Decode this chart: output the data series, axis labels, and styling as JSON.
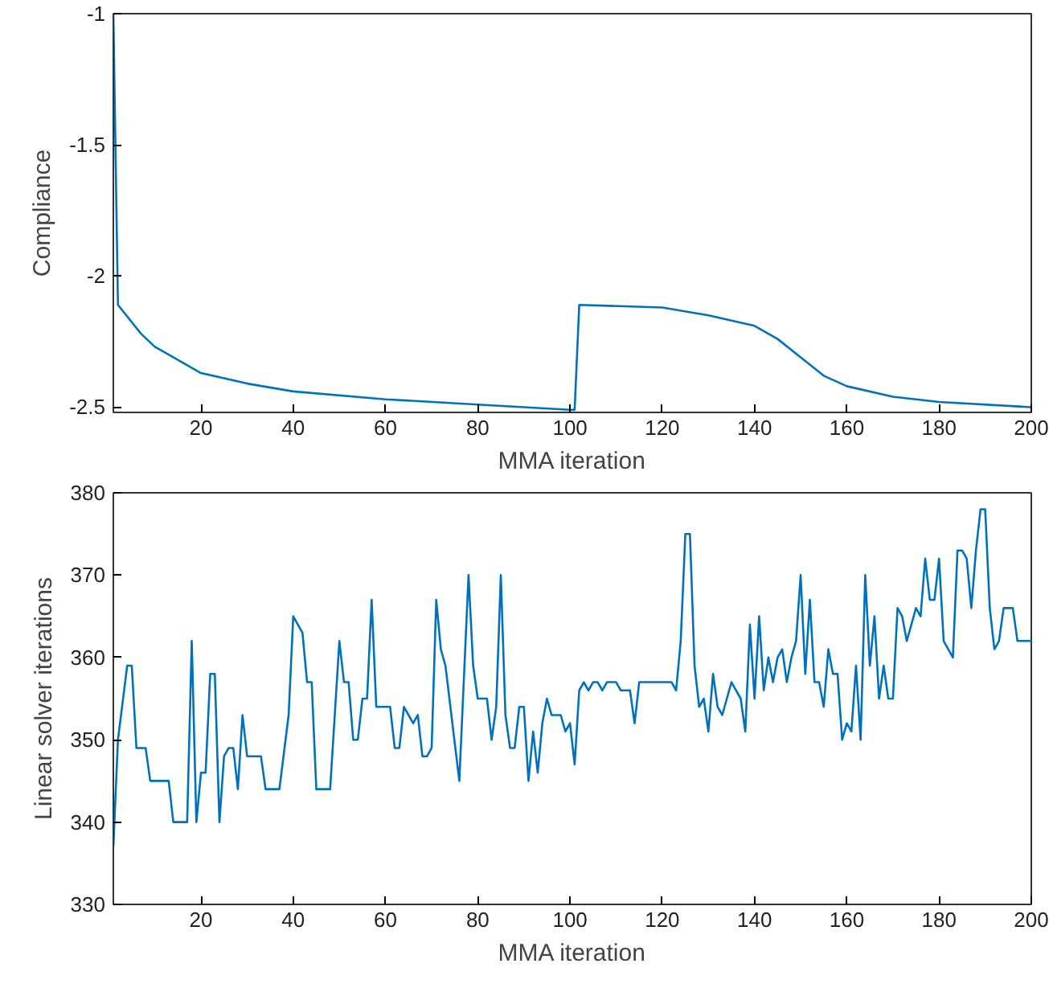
{
  "chart_data": [
    {
      "type": "line",
      "xlabel": "MMA iteration",
      "ylabel": "Compliance",
      "xlim": [
        1,
        200
      ],
      "ylim": [
        -2.52,
        -1
      ],
      "xticks": [
        20,
        40,
        60,
        80,
        100,
        120,
        140,
        160,
        180,
        200
      ],
      "yticks": [
        -2.5,
        -2,
        -1.5,
        -1
      ],
      "series": [
        {
          "color": "#0072bd",
          "x": [
            1,
            2,
            7,
            10,
            14,
            20,
            30,
            40,
            60,
            80,
            100,
            101,
            102,
            120,
            130,
            140,
            145,
            150,
            155,
            160,
            170,
            180,
            200
          ],
          "values": [
            -1,
            -2.11,
            -2.22,
            -2.27,
            -2.31,
            -2.37,
            -2.41,
            -2.44,
            -2.47,
            -2.49,
            -2.51,
            -2.51,
            -2.11,
            -2.12,
            -2.15,
            -2.19,
            -2.24,
            -2.31,
            -2.38,
            -2.42,
            -2.46,
            -2.48,
            -2.5
          ]
        }
      ]
    },
    {
      "type": "line",
      "xlabel": "MMA iteration",
      "ylabel": "Linear solver iterations",
      "xlim": [
        1,
        200
      ],
      "ylim": [
        330,
        380
      ],
      "xticks": [
        20,
        40,
        60,
        80,
        100,
        120,
        140,
        160,
        180,
        200
      ],
      "yticks": [
        330,
        340,
        350,
        360,
        370,
        380
      ],
      "series": [
        {
          "color": "#0072bd",
          "x": [
            1,
            2,
            4,
            5,
            6,
            8,
            9,
            13,
            14,
            17,
            18,
            19,
            20,
            21,
            22,
            23,
            24,
            25,
            26,
            27,
            28,
            29,
            30,
            33,
            34,
            37,
            39,
            40,
            42,
            43,
            44,
            45,
            48,
            50,
            51,
            52,
            53,
            54,
            55,
            56,
            57,
            58,
            61,
            62,
            63,
            64,
            66,
            67,
            68,
            69,
            70,
            71,
            72,
            73,
            76,
            78,
            79,
            80,
            82,
            83,
            84,
            85,
            86,
            87,
            88,
            89,
            90,
            91,
            92,
            93,
            94,
            95,
            96,
            98,
            99,
            100,
            101,
            102,
            103,
            104,
            105,
            106,
            107,
            108,
            110,
            111,
            113,
            114,
            115,
            122,
            123,
            124,
            125,
            126,
            127,
            128,
            129,
            130,
            131,
            132,
            133,
            135,
            137,
            138,
            139,
            140,
            141,
            142,
            143,
            144,
            145,
            146,
            147,
            148,
            149,
            150,
            151,
            152,
            153,
            154,
            155,
            156,
            157,
            158,
            159,
            160,
            161,
            162,
            163,
            164,
            165,
            166,
            167,
            168,
            169,
            170,
            171,
            172,
            173,
            174,
            175,
            176,
            177,
            178,
            179,
            180,
            181,
            183,
            184,
            185,
            186,
            187,
            188,
            189,
            190,
            191,
            192,
            193,
            194,
            196,
            197,
            200
          ],
          "values": [
            337,
            350,
            359,
            359,
            349,
            349,
            345,
            345,
            340,
            340,
            362,
            340,
            346,
            346,
            358,
            358,
            340,
            348,
            349,
            349,
            344,
            353,
            348,
            348,
            344,
            344,
            353,
            365,
            363,
            357,
            357,
            344,
            344,
            362,
            357,
            357,
            350,
            350,
            355,
            355,
            367,
            354,
            354,
            349,
            349,
            354,
            352,
            353,
            348,
            348,
            349,
            367,
            361,
            359,
            345,
            370,
            359,
            355,
            355,
            350,
            354,
            370,
            353,
            349,
            349,
            354,
            354,
            345,
            351,
            346,
            352,
            355,
            353,
            353,
            351,
            352,
            347,
            356,
            357,
            356,
            357,
            357,
            356,
            357,
            357,
            356,
            356,
            352,
            357,
            357,
            356,
            362,
            375,
            375,
            359,
            354,
            355,
            351,
            358,
            354,
            353,
            357,
            355,
            351,
            364,
            355,
            365,
            356,
            360,
            357,
            360,
            361,
            357,
            360,
            362,
            370,
            358,
            367,
            357,
            357,
            354,
            361,
            358,
            358,
            350,
            352,
            351,
            359,
            350,
            370,
            359,
            365,
            355,
            359,
            355,
            355,
            366,
            365,
            362,
            364,
            366,
            365,
            372,
            367,
            367,
            372,
            362,
            360,
            373,
            373,
            372,
            366,
            373,
            378,
            378,
            366,
            361,
            362,
            366,
            366,
            362,
            362
          ]
        }
      ]
    }
  ]
}
